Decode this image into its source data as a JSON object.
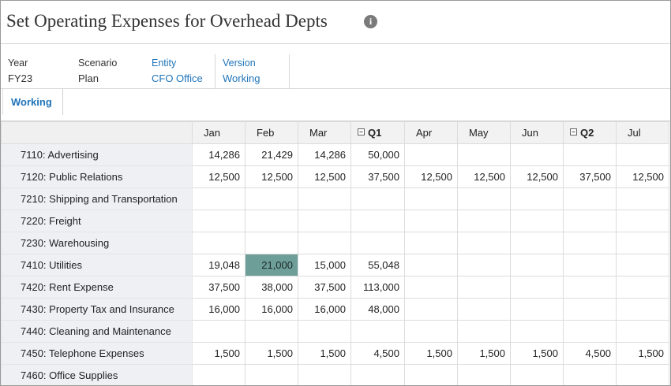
{
  "header": {
    "title": "Set Operating Expenses for Overhead Depts",
    "info_icon": "info-icon"
  },
  "pov": [
    {
      "label": "Year",
      "value": "FY23",
      "linked": false
    },
    {
      "label": "Scenario",
      "value": "Plan",
      "linked": false
    },
    {
      "label": "Entity",
      "value": "CFO Office",
      "linked": true
    },
    {
      "label": "Version",
      "value": "Working",
      "linked": true
    }
  ],
  "tabs": {
    "active": "Working"
  },
  "grid": {
    "columns": [
      "Jan",
      "Feb",
      "Mar",
      "Q1",
      "Apr",
      "May",
      "Jun",
      "Q2",
      "Jul"
    ],
    "collapse_marker": "⊟",
    "selected_cell": {
      "row": 5,
      "col": 1
    },
    "selected_color": "#6e9e98",
    "rows": [
      {
        "label": "7110: Advertising",
        "values": [
          "14,286",
          "21,429",
          "14,286",
          "50,000",
          "",
          "",
          "",
          "",
          ""
        ]
      },
      {
        "label": "7120: Public Relations",
        "values": [
          "12,500",
          "12,500",
          "12,500",
          "37,500",
          "12,500",
          "12,500",
          "12,500",
          "37,500",
          "12,500"
        ]
      },
      {
        "label": "7210: Shipping and Transportation",
        "values": [
          "",
          "",
          "",
          "",
          "",
          "",
          "",
          "",
          ""
        ]
      },
      {
        "label": "7220: Freight",
        "values": [
          "",
          "",
          "",
          "",
          "",
          "",
          "",
          "",
          ""
        ]
      },
      {
        "label": "7230: Warehousing",
        "values": [
          "",
          "",
          "",
          "",
          "",
          "",
          "",
          "",
          ""
        ]
      },
      {
        "label": "7410: Utilities",
        "values": [
          "19,048",
          "21,000",
          "15,000",
          "55,048",
          "",
          "",
          "",
          "",
          ""
        ]
      },
      {
        "label": "7420: Rent Expense",
        "values": [
          "37,500",
          "38,000",
          "37,500",
          "113,000",
          "",
          "",
          "",
          "",
          ""
        ]
      },
      {
        "label": "7430: Property Tax and Insurance",
        "values": [
          "16,000",
          "16,000",
          "16,000",
          "48,000",
          "",
          "",
          "",
          "",
          ""
        ]
      },
      {
        "label": "7440: Cleaning and Maintenance",
        "values": [
          "",
          "",
          "",
          "",
          "",
          "",
          "",
          "",
          ""
        ]
      },
      {
        "label": "7450: Telephone Expenses",
        "values": [
          "1,500",
          "1,500",
          "1,500",
          "4,500",
          "1,500",
          "1,500",
          "1,500",
          "4,500",
          "1,500"
        ]
      },
      {
        "label": "7460: Office Supplies",
        "values": [
          "",
          "",
          "",
          "",
          "",
          "",
          "",
          "",
          ""
        ]
      }
    ]
  }
}
